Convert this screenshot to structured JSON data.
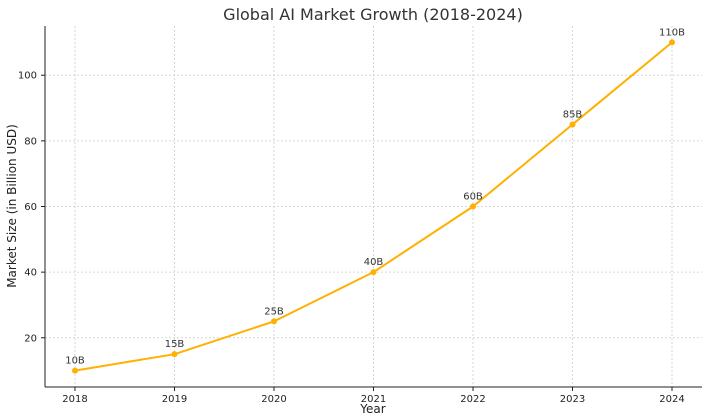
{
  "chart_data": {
    "type": "line",
    "title": "Global AI Market Growth (2018-2024)",
    "xlabel": "Year",
    "ylabel": "Market Size (in Billion USD)",
    "categories": [
      "2018",
      "2019",
      "2020",
      "2021",
      "2022",
      "2023",
      "2024"
    ],
    "series": [
      {
        "values": [
          10,
          15,
          25,
          40,
          60,
          85,
          110
        ],
        "labels": [
          "10B",
          "15B",
          "25B",
          "40B",
          "60B",
          "85B",
          "110B"
        ],
        "color": "#FFB000"
      }
    ],
    "y_ticks": [
      20,
      40,
      60,
      80,
      100
    ],
    "ylim": [
      5,
      115
    ],
    "grid": true,
    "legend": "none"
  }
}
